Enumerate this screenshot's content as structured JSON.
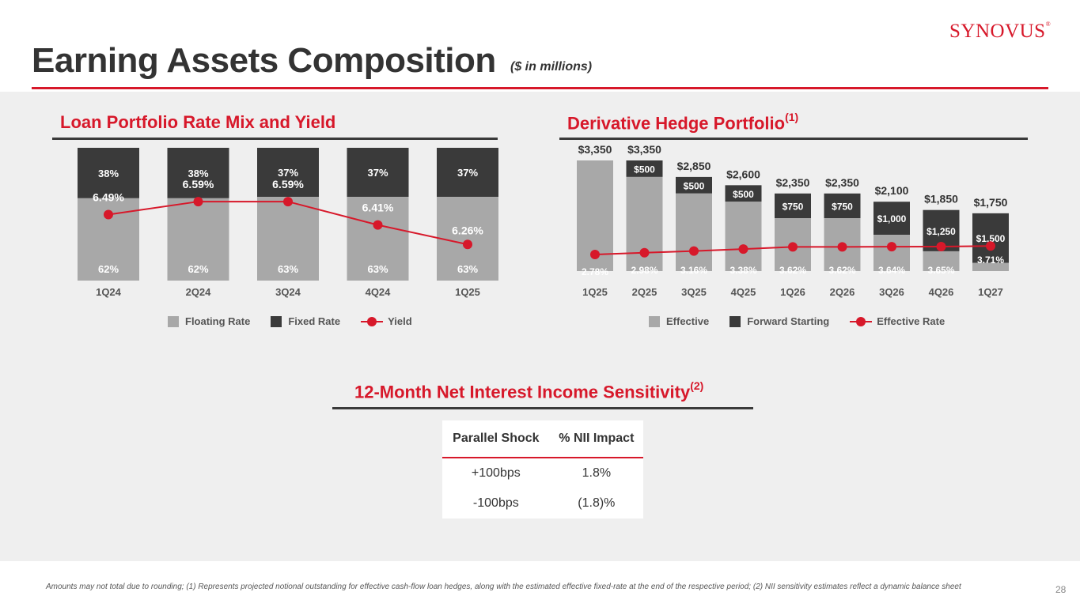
{
  "header": {
    "title": "Earning Assets Composition",
    "subtitle": "($ in millions)",
    "logo": "SYNOVUS",
    "logo_mark": "®"
  },
  "colors": {
    "accent": "#d7182a",
    "floating": "#a8a8a8",
    "fixed": "#3a3a3a",
    "band": "#efefef"
  },
  "loan_section": {
    "heading": "Loan Portfolio Rate Mix and Yield",
    "legend": {
      "floating": "Floating Rate",
      "fixed": "Fixed Rate",
      "yield": "Yield"
    }
  },
  "hedge_section": {
    "heading": "Derivative Hedge Portfolio",
    "heading_note": "(1)",
    "legend": {
      "effective": "Effective",
      "forward": "Forward Starting",
      "rate": "Effective Rate"
    }
  },
  "nii_section": {
    "heading": "12-Month Net Interest Income Sensitivity",
    "heading_note": "(2)",
    "table": {
      "headers": [
        "Parallel Shock",
        "% NII Impact"
      ],
      "rows": [
        [
          "+100bps",
          "1.8%"
        ],
        [
          "-100bps",
          "(1.8)%"
        ]
      ]
    }
  },
  "chart_data": [
    {
      "type": "bar",
      "stacked": true,
      "title": "Loan Portfolio Rate Mix and Yield",
      "categories": [
        "1Q24",
        "2Q24",
        "3Q24",
        "4Q24",
        "1Q25"
      ],
      "series": [
        {
          "name": "Floating Rate",
          "values": [
            62,
            62,
            63,
            63,
            63
          ],
          "labels": [
            "62%",
            "62%",
            "63%",
            "63%",
            "63%"
          ]
        },
        {
          "name": "Fixed Rate",
          "values": [
            38,
            38,
            37,
            37,
            37
          ],
          "labels": [
            "38%",
            "38%",
            "37%",
            "37%",
            "37%"
          ]
        }
      ],
      "line": {
        "name": "Yield",
        "values": [
          6.49,
          6.59,
          6.59,
          6.41,
          6.26
        ],
        "labels": [
          "6.49%",
          "6.59%",
          "6.59%",
          "6.41%",
          "6.26%"
        ]
      },
      "ylim": [
        0,
        100
      ],
      "yield_axis": [
        6.0,
        6.7
      ]
    },
    {
      "type": "bar",
      "stacked": true,
      "title": "Derivative Hedge Portfolio",
      "categories": [
        "1Q25",
        "2Q25",
        "3Q25",
        "4Q25",
        "1Q26",
        "2Q26",
        "3Q26",
        "4Q26",
        "1Q27"
      ],
      "totals": [
        3350,
        3350,
        2850,
        2600,
        2350,
        2350,
        2100,
        1850,
        1750
      ],
      "total_labels": [
        "$3,350",
        "$3,350",
        "$2,850",
        "$2,600",
        "$2,350",
        "$2,350",
        "$2,100",
        "$1,850",
        "$1,750"
      ],
      "series": [
        {
          "name": "Effective",
          "values": [
            3350,
            2850,
            2350,
            2100,
            1600,
            1600,
            1100,
            600,
            250
          ]
        },
        {
          "name": "Forward Starting",
          "values": [
            0,
            500,
            500,
            500,
            750,
            750,
            1000,
            1250,
            1500
          ],
          "labels": [
            "",
            "$500",
            "$500",
            "$500",
            "$750",
            "$750",
            "$1,000",
            "$1,250",
            "$1,500"
          ]
        }
      ],
      "line": {
        "name": "Effective Rate",
        "values": [
          2.78,
          2.98,
          3.16,
          3.38,
          3.62,
          3.62,
          3.64,
          3.65,
          3.71
        ],
        "labels": [
          "2.78%",
          "2.98%",
          "3.16%",
          "3.38%",
          "3.62%",
          "3.62%",
          "3.64%",
          "3.65%",
          "3.71%"
        ]
      },
      "ylim": [
        0,
        3350
      ]
    }
  ],
  "footnote": "Amounts may not total due to rounding; (1) Represents projected notional outstanding for effective cash-flow loan hedges, along with the estimated effective fixed-rate at the end of the respective period; (2) NII sensitivity estimates reflect a dynamic balance sheet",
  "page_number": "28"
}
